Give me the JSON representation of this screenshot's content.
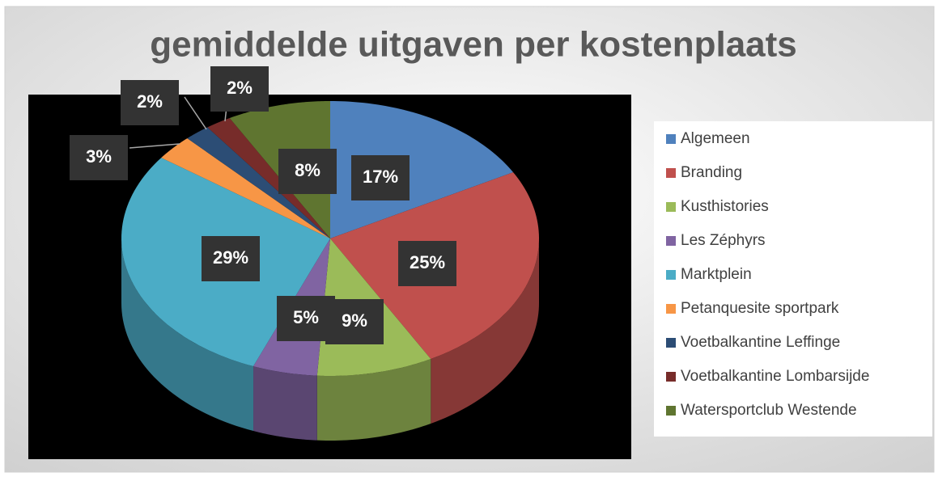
{
  "chart_data": {
    "type": "pie",
    "title": "gemiddelde uitgaven per kostenplaats",
    "categories": [
      "Algemeen",
      "Branding",
      "Kusthistories",
      "Les Zéphyrs",
      "Marktplein",
      "Petanquesite sportpark",
      "Voetbalkantine Leffinge",
      "Voetbalkantine Lombarsijde",
      "Watersportclub Westende"
    ],
    "values": [
      17,
      25,
      9,
      5,
      29,
      3,
      2,
      2,
      8
    ],
    "value_labels": [
      "17%",
      "25%",
      "9%",
      "5%",
      "29%",
      "3%",
      "2%",
      "2%",
      "8%"
    ],
    "colors": [
      "#4f81bd",
      "#c0504d",
      "#9bbb59",
      "#8064a2",
      "#4bacc6",
      "#f79646",
      "#2c4d75",
      "#772c2a",
      "#5f7530"
    ],
    "legend": "right"
  }
}
